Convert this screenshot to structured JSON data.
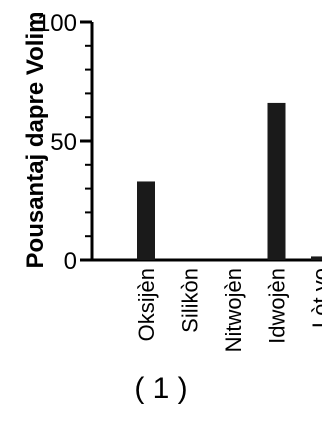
{
  "panel_label": "( 1 )",
  "chart_data": {
    "type": "bar",
    "categories": [
      "Oksijèn",
      "Silikòn",
      "Nitwojèn",
      "Idwojèn",
      "Lòt yo"
    ],
    "values": [
      33,
      0,
      0,
      66,
      1.5
    ],
    "ylabel": "Pousantaj dapre Volim",
    "xlabel": "",
    "ylim": [
      0,
      100
    ],
    "yticks": [
      "0",
      "50",
      "100"
    ],
    "grid": false,
    "bar_color": "#1a1a1a"
  }
}
